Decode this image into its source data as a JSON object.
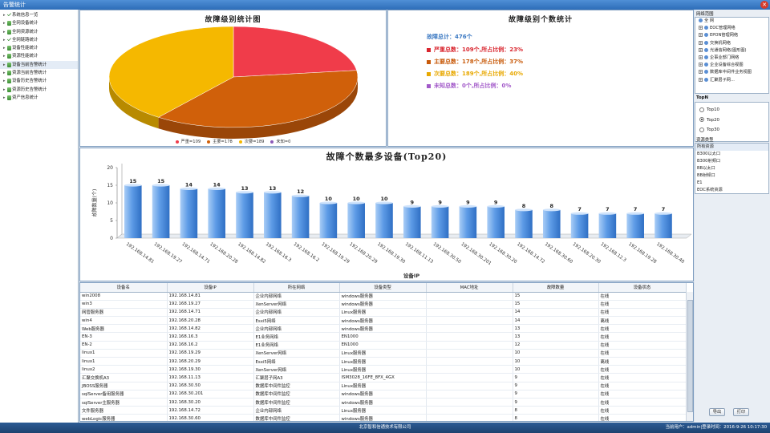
{
  "window": {
    "title": "告警统计",
    "close_glyph": "✕"
  },
  "left_tree": [
    {
      "label": "系统信息一览",
      "icon": "check-icon"
    },
    {
      "label": "全网设备统计",
      "icon": "device-icon"
    },
    {
      "label": "全网资源统计",
      "icon": "device-icon"
    },
    {
      "label": "全网链路统计",
      "icon": "check-icon"
    },
    {
      "label": "设备性能统计",
      "icon": "device-icon"
    },
    {
      "label": "资源性能统计",
      "icon": "device-icon"
    },
    {
      "label": "设备当前告警统计",
      "icon": "device-icon"
    },
    {
      "label": "资源当前告警统计",
      "icon": "device-icon"
    },
    {
      "label": "设备历史告警统计",
      "icon": "device-icon"
    },
    {
      "label": "资源历史告警统计",
      "icon": "device-icon"
    },
    {
      "label": "资产信息统计",
      "icon": "device-icon"
    }
  ],
  "pie_panel": {
    "title": "故障级别统计图",
    "legend": [
      {
        "label": "严重=109",
        "color": "#f03c4a"
      },
      {
        "label": "主要=178",
        "color": "#d0600a"
      },
      {
        "label": "次要=189",
        "color": "#f5b800"
      },
      {
        "label": "未知=0",
        "color": "#8c5ab8"
      }
    ],
    "side_colors": [
      "#b3222e",
      "#9a4608",
      "#b88a00"
    ]
  },
  "stats_panel": {
    "title": "故障级别个数统计",
    "total": "故障总计：476个",
    "lines": [
      {
        "text": "严重总数：109个,所占比例：23%",
        "color": "#d9252e"
      },
      {
        "text": "主要总数：178个,所占比例：37%",
        "color": "#c85a0a"
      },
      {
        "text": "次要总数：189个,所占比例：40%",
        "color": "#e8a800"
      },
      {
        "text": "未知总数：0个,所占比例：0%",
        "color": "#a259c9"
      }
    ],
    "total_color": "#3a78c2"
  },
  "chart_data": [
    {
      "type": "pie",
      "title": "故障级别统计图",
      "labels": [
        "严重",
        "主要",
        "次要",
        "未知"
      ],
      "values": [
        109,
        178,
        189,
        0
      ],
      "colors": [
        "#f03c4a",
        "#d0600a",
        "#f5b800",
        "#8c5ab8"
      ],
      "legend_position": "bottom"
    },
    {
      "type": "bar",
      "title": "故障个数最多设备(Top20)",
      "xlabel": "设备IP",
      "ylabel": "故障数量(个)",
      "ylim": [
        0,
        20
      ],
      "yticks": [
        0,
        5,
        10,
        15,
        20
      ],
      "grid": false,
      "categories": [
        "192.168.14.81",
        "192.168.19.27",
        "192.168.14.71",
        "192.168.20.28",
        "192.168.14.82",
        "192.168.16.3",
        "192.168.16.2",
        "192.168.19.29",
        "192.168.20.29",
        "192.168.19.30",
        "192.168.11.13",
        "192.168.30.50",
        "192.168.30.201",
        "192.168.30.20",
        "192.168.14.72",
        "192.168.30.60",
        "192.168.20.30",
        "192.168.12.3",
        "192.168.19.28",
        "192.168.30.40"
      ],
      "values": [
        15,
        15,
        14,
        14,
        13,
        13,
        12,
        10,
        10,
        10,
        9,
        9,
        9,
        9,
        8,
        8,
        7,
        7,
        7,
        7
      ],
      "bar_color": "#5d9be6"
    }
  ],
  "bar_panel": {
    "title": "故障个数最多设备(Top20)"
  },
  "table": {
    "columns": [
      "设备名",
      "设备IP",
      "所在网络",
      "设备类型",
      "MAC地址",
      "故障数量",
      "设备状态"
    ],
    "rows": [
      [
        "win2008",
        "192.168.14.81",
        "企业内部网络",
        "windows服务器",
        "",
        "15",
        "在线"
      ],
      [
        "win3",
        "192.168.19.27",
        "XenServer网络",
        "windows服务器",
        "",
        "15",
        "在线"
      ],
      [
        "网管服务器",
        "192.168.14.71",
        "企业内部网络",
        "Linux服务器",
        "",
        "14",
        "在线"
      ],
      [
        "win4",
        "192.168.20.28",
        "Esxi5网络",
        "windows服务器",
        "",
        "14",
        "离线"
      ],
      [
        "Web服务器",
        "192.168.14.82",
        "企业内部网络",
        "windows服务器",
        "",
        "13",
        "在线"
      ],
      [
        "EN-3",
        "192.168.16.3",
        "E1业务网络",
        "EN1000",
        "",
        "13",
        "在线"
      ],
      [
        "EN-2",
        "192.168.16.2",
        "E1业务网络",
        "EN1000",
        "",
        "12",
        "在线"
      ],
      [
        "linux1",
        "192.168.19.29",
        "XenServer网络",
        "Linux服务器",
        "",
        "10",
        "在线"
      ],
      [
        "linux1",
        "192.168.20.29",
        "Esxi5网络",
        "Linux服务器",
        "",
        "10",
        "离线"
      ],
      [
        "linux2",
        "192.168.19.30",
        "XenServer网络",
        "Linux服务器",
        "",
        "10",
        "在线"
      ],
      [
        "汇聚交换机A3",
        "192.168.11.13",
        "汇聚层子网A3",
        "ISM3028_16FE_8FX_4GX",
        "",
        "9",
        "在线"
      ],
      [
        "JBOSS服务器",
        "192.168.30.50",
        "数据库中间件监控",
        "Linux服务器",
        "",
        "9",
        "在线"
      ],
      [
        "sqlServer备用服务器",
        "192.168.30.201",
        "数据库中间件监控",
        "windows服务器",
        "",
        "9",
        "在线"
      ],
      [
        "sqlServer主服务器",
        "192.168.30.20",
        "数据库中间件监控",
        "windows服务器",
        "",
        "9",
        "在线"
      ],
      [
        "文件服务器",
        "192.168.14.72",
        "企业内部网络",
        "Linux服务器",
        "",
        "8",
        "在线"
      ],
      [
        "webLogic服务器",
        "192.168.30.60",
        "数据库中间件监控",
        "windows服务器",
        "",
        "8",
        "在线"
      ]
    ]
  },
  "right_panel": {
    "network_title": "网络范围",
    "network_items": [
      {
        "label": "全 网",
        "icon": "globe-icon"
      },
      {
        "label": "EOC管理网络",
        "icon": "network-icon"
      },
      {
        "label": "EPON管理网络",
        "icon": "network-icon"
      },
      {
        "label": "交换机网络",
        "icon": "network-icon"
      },
      {
        "label": "光通信网络(图形图)",
        "icon": "network-icon"
      },
      {
        "label": "企事业部门网络",
        "icon": "network-icon"
      },
      {
        "label": "企业设备综合视图",
        "icon": "network-icon"
      },
      {
        "label": "数据库中间件业务视图",
        "icon": "network-icon"
      },
      {
        "label": "汇聚层子网...",
        "icon": "network-icon"
      }
    ],
    "topn_title": "TopN",
    "topn_options": [
      {
        "label": "Top10",
        "checked": false
      },
      {
        "label": "Top20",
        "checked": true
      },
      {
        "label": "Top30",
        "checked": false
      }
    ],
    "resource_title": "资源类型",
    "resource_items": [
      "所有资源",
      "B300以太口",
      "B300射频口",
      "BB以太口",
      "BB射频口",
      "E1",
      "EOC系统资源"
    ],
    "export_label": "导出",
    "print_label": "打印"
  },
  "status_bar": {
    "company": "北京智和信通技术有限公司",
    "user": "当前用户：admin|登录时间：2016-9-26 10:17:30"
  }
}
